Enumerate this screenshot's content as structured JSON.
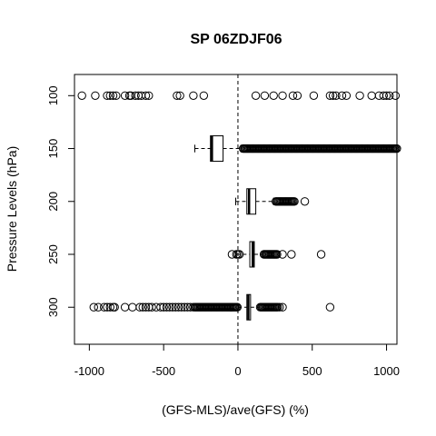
{
  "chart_data": {
    "type": "boxplot",
    "title": "SP 06ZDJF06",
    "xlabel": "(GFS-MLS)/ave(GFS) (%)",
    "ylabel": "Pressure Levels (hPa)",
    "xlim": [
      -1100,
      1070
    ],
    "ylim": [
      80,
      335
    ],
    "x_ticks": [
      -1000,
      -500,
      0,
      500,
      1000
    ],
    "x_tick_labels": [
      "-1000",
      "-500",
      "0",
      "500",
      "1000"
    ],
    "y_ticks": [
      100,
      150,
      200,
      250,
      300
    ],
    "y_tick_labels": [
      "100",
      "150",
      "200",
      "250",
      "300"
    ],
    "reference_line": 0,
    "grid": false,
    "levels": [
      {
        "level": 100,
        "box": null,
        "outliers": [
          -1050,
          -960,
          -880,
          -860,
          -840,
          -820,
          -760,
          -730,
          -720,
          -690,
          -670,
          -650,
          -620,
          -600,
          -410,
          -390,
          -300,
          -230,
          120,
          180,
          240,
          300,
          370,
          400,
          510,
          620,
          640,
          660,
          700,
          730,
          820,
          900,
          950,
          980,
          1000,
          1020,
          1060
        ]
      },
      {
        "level": 150,
        "box": {
          "whisker_low": -290,
          "q1": -185,
          "median": -175,
          "q3": -100,
          "whisker_high": 20
        },
        "outliers": [],
        "dense_outlier_range": [
          35,
          1070
        ]
      },
      {
        "level": 200,
        "box": {
          "whisker_low": -15,
          "q1": 60,
          "median": 75,
          "q3": 120,
          "whisker_high": 240
        },
        "outliers": [
          450
        ],
        "dense_outlier_range": [
          255,
          385
        ]
      },
      {
        "level": 250,
        "box": {
          "whisker_low": -10,
          "q1": 80,
          "median": 100,
          "q3": 110,
          "whisker_high": 170
        },
        "outliers": [
          -40,
          -10,
          0,
          10,
          300,
          360,
          560
        ],
        "dense_outlier_range": [
          175,
          265
        ]
      },
      {
        "level": 300,
        "box": {
          "whisker_low": 0,
          "q1": 60,
          "median": 70,
          "q3": 85,
          "whisker_high": 140
        },
        "outliers": [
          -970,
          -940,
          -900,
          -880,
          -860,
          -840,
          -830,
          -760,
          -710,
          -660,
          -640,
          -620,
          -600,
          -580,
          -550,
          -520,
          -500,
          -480,
          -460,
          -440,
          -420,
          -400,
          -380,
          -360,
          -340,
          -320,
          -300,
          280,
          300,
          620
        ],
        "dense_outlier_range_low": [
          -290,
          0
        ],
        "dense_outlier_range": [
          150,
          270
        ]
      }
    ]
  }
}
